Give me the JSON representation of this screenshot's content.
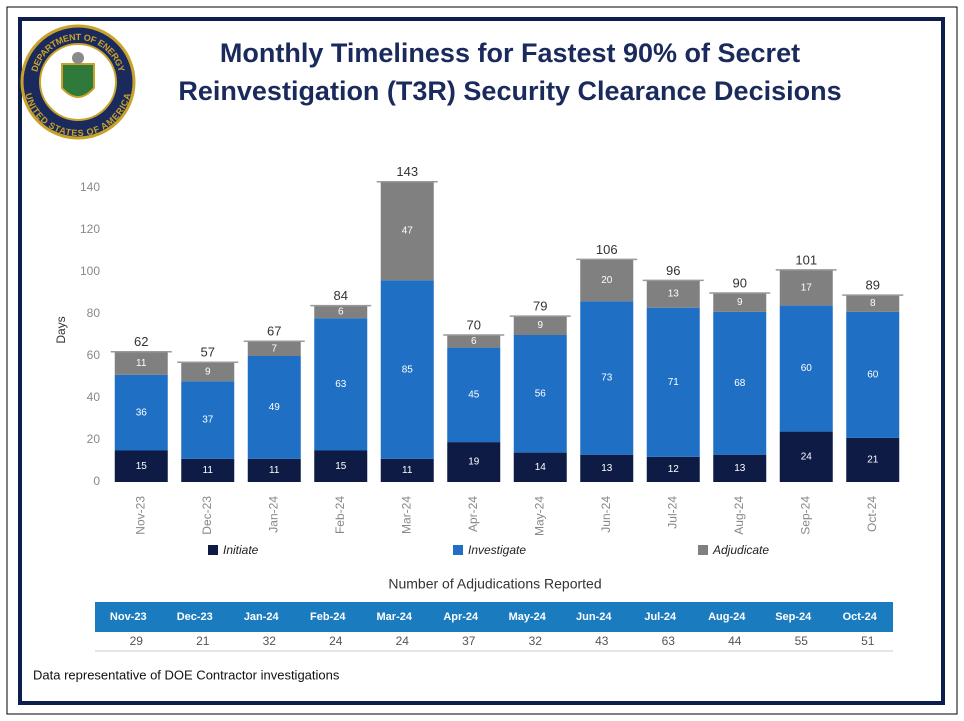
{
  "chart_data": {
    "type": "stacked_bar",
    "title": "Monthly Timeliness for Fastest 90% of Secret Reinvestigation (T3R) Security Clearance Decisions",
    "y_label": "Days",
    "categories": [
      "Nov-23",
      "Dec-23",
      "Jan-24",
      "Feb-24",
      "Mar-24",
      "Apr-24",
      "May-24",
      "Jun-24",
      "Jul-24",
      "Aug-24",
      "Sep-24",
      "Oct-24"
    ],
    "series": [
      {
        "name": "Initiate",
        "color": "#0d1b45",
        "values": [
          15,
          11,
          11,
          15,
          11,
          19,
          14,
          13,
          12,
          13,
          24,
          21
        ]
      },
      {
        "name": "Investigate",
        "color": "#1f6fc5",
        "values": [
          36,
          37,
          49,
          63,
          85,
          45,
          56,
          73,
          71,
          68,
          60,
          60
        ]
      },
      {
        "name": "Adjudicate",
        "color": "#808080",
        "values": [
          11,
          9,
          7,
          6,
          47,
          6,
          9,
          20,
          13,
          9,
          17,
          8
        ]
      }
    ],
    "totals": [
      62,
      57,
      67,
      84,
      143,
      70,
      79,
      106,
      96,
      90,
      101,
      89
    ],
    "ylim": [
      0,
      150
    ],
    "yticks": [
      0,
      20,
      40,
      60,
      80,
      100,
      120,
      140
    ],
    "grid": false,
    "legend": "bottom"
  },
  "logo": {
    "top": "DEPARTMENT OF ENERGY",
    "bottom": "UNITED STATES OF AMERICA"
  },
  "table": {
    "title": "Number of Adjudications Reported",
    "header": [
      "Nov-23",
      "Dec-23",
      "Jan-24",
      "Feb-24",
      "Mar-24",
      "Apr-24",
      "May-24",
      "Jun-24",
      "Jul-24",
      "Aug-24",
      "Sep-24",
      "Oct-24"
    ],
    "rows": [
      [
        29,
        21,
        32,
        24,
        24,
        37,
        32,
        43,
        63,
        44,
        55,
        51
      ]
    ]
  },
  "footnote": "Data representative of DOE Contractor investigations"
}
